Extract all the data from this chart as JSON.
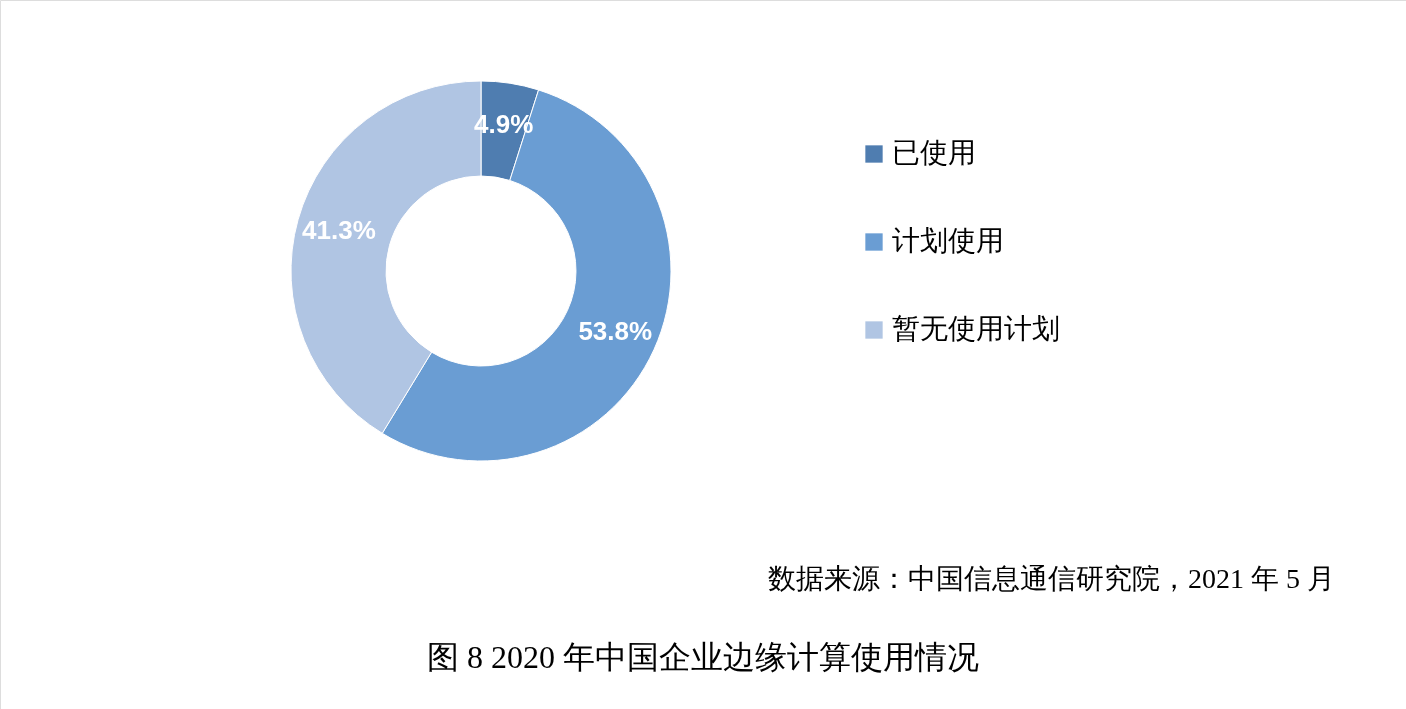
{
  "chart_data": {
    "type": "donut",
    "title": "图 8 2020 年中国企业边缘计算使用情况",
    "categories": [
      "已使用",
      "计划使用",
      "暂无使用计划"
    ],
    "values": [
      4.9,
      53.8,
      41.3
    ],
    "value_labels": [
      "4.9%",
      "53.8%",
      "41.3%"
    ],
    "colors": [
      "#4f7db0",
      "#6a9dd3",
      "#b0c5e3"
    ],
    "legend": "right",
    "annotations": [
      "数据来源：中国信息通信研究院，2021 年 5 月"
    ]
  }
}
